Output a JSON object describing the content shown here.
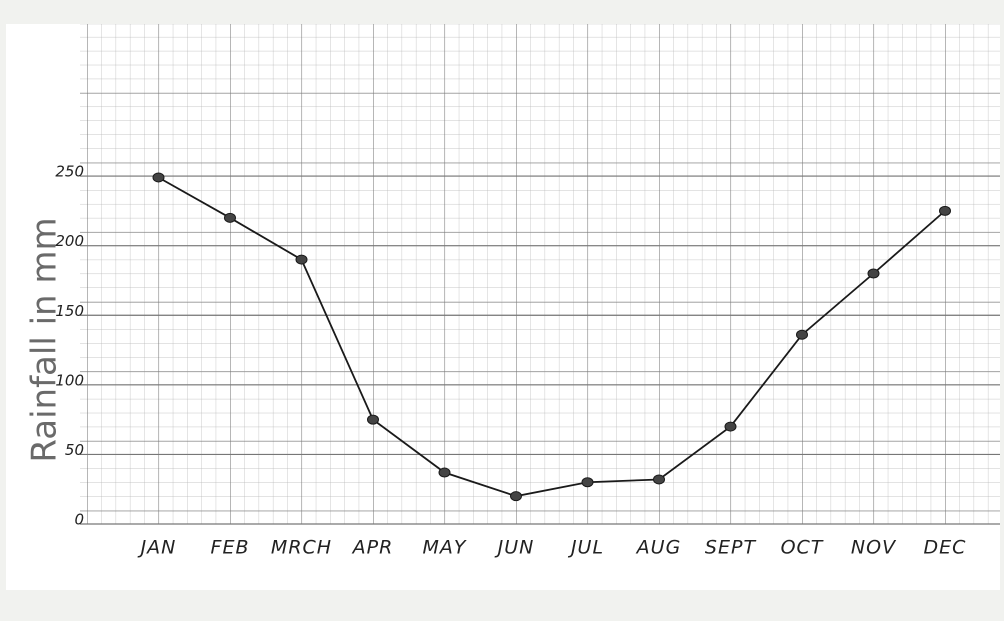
{
  "chart_data": {
    "type": "line",
    "y_label": "Rainfall in mm",
    "categories": [
      "JAN",
      "FEB",
      "MRCH",
      "APR",
      "MAY",
      "JUN",
      "JUL",
      "AUG",
      "SEPT",
      "OCT",
      "NOV",
      "DEC"
    ],
    "values": [
      249,
      220,
      190,
      75,
      37,
      20,
      30,
      32,
      70,
      136,
      180,
      225
    ],
    "color": "#1a1a1a",
    "ylim": [
      0,
      360
    ],
    "yticks": [
      0,
      50,
      100,
      150,
      200,
      250
    ],
    "grid": true
  }
}
